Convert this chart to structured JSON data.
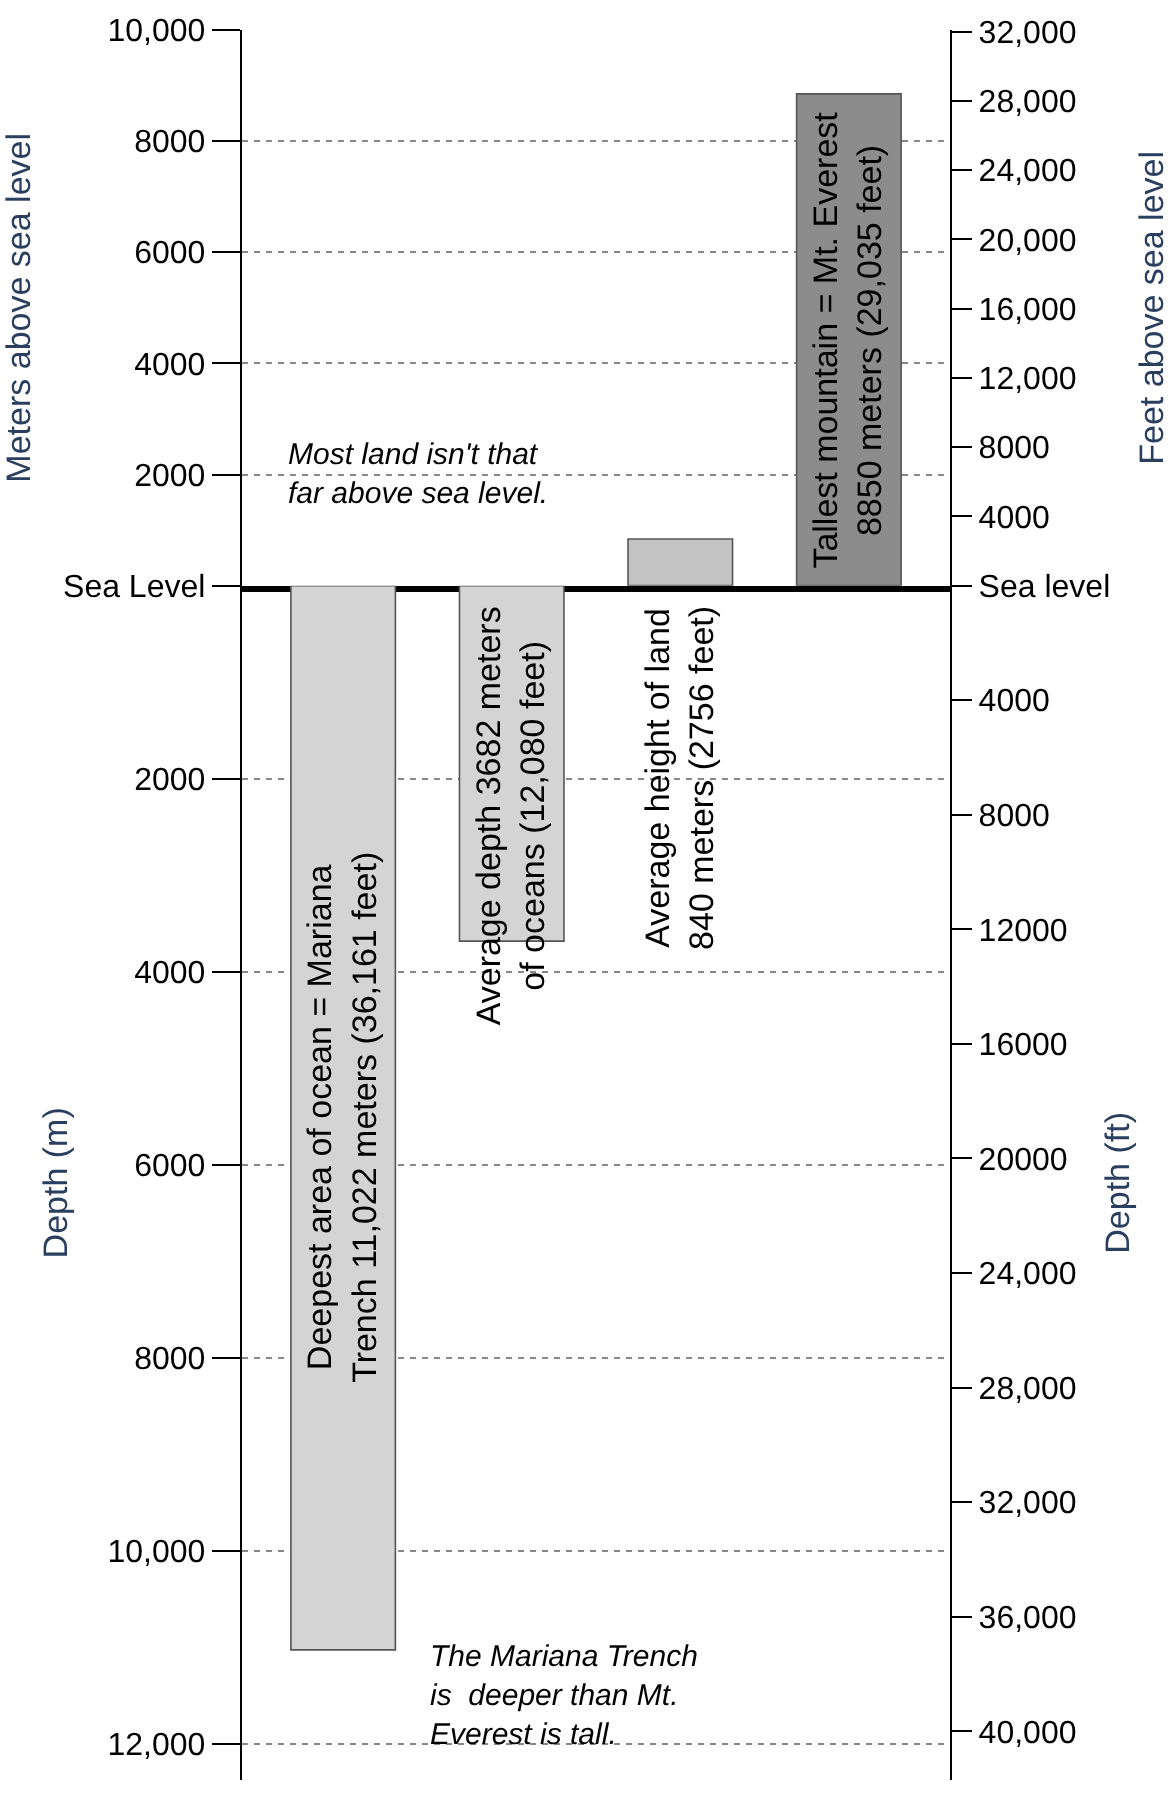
{
  "chart_data": [
    {
      "type": "bar",
      "categories": [
        null,
        null,
        null,
        null
      ],
      "values": [
        null,
        null,
        840,
        8850
      ],
      "colors": [
        "#d4d4d4",
        "#d4d4d4",
        "#c4c4c4",
        "#8c8c8c"
      ],
      "value_labels": [
        null,
        null,
        "Average height of land\n840 meters (2756 feet)",
        "Tallest mountain = Mt. Everest\n8850 meters (29,035 feet)"
      ],
      "ylabel": "Meters above sea level",
      "y2label": "Feet above sea level",
      "ylim": [
        0,
        10000
      ],
      "yticks": [
        {
          "value": 0,
          "label": "Sea Level"
        },
        2000,
        4000,
        6000,
        8000,
        {
          "value": 10000,
          "label": "10,000"
        }
      ],
      "y2lim": [
        0,
        32100
      ],
      "y2ticks": [
        {
          "value": 0,
          "label": "Sea level"
        },
        {
          "value": 4000,
          "label": "4000"
        },
        {
          "value": 8000,
          "label": "8000"
        },
        {
          "value": 12000,
          "label": "12,000"
        },
        {
          "value": 16000,
          "label": "16,000"
        },
        {
          "value": 20000,
          "label": "20,000"
        },
        {
          "value": 24000,
          "label": "24,000"
        },
        {
          "value": 28000,
          "label": "28,000"
        },
        {
          "value": 32000,
          "label": "32,000"
        }
      ],
      "grid": "y",
      "tick_labels": "y",
      "annotations": [
        "Most land isn't that\nfar above sea level."
      ]
    },
    {
      "type": "bar",
      "categories": [
        null,
        null,
        null,
        null
      ],
      "values": [
        11022,
        3682,
        null,
        null
      ],
      "colors": [
        "#d4d4d4",
        "#d4d4d4",
        "#c4c4c4",
        "#8c8c8c"
      ],
      "value_labels": [
        "Deepest area of ocean = Mariana\nTrench 11,022 meters (36,161 feet)",
        "Average depth 3682 meters\nof oceans (12,080 feet)",
        null,
        null
      ],
      "ylabel": "Depth (m)",
      "y2label": "Depth (ft)",
      "ylim": [
        12370,
        0
      ],
      "yticks": [
        2000,
        4000,
        6000,
        8000,
        {
          "value": 10000,
          "label": "10,000"
        },
        {
          "value": 12000,
          "label": "12,000"
        }
      ],
      "y2lim": [
        41700,
        0
      ],
      "y2ticks": [
        {
          "value": 4000,
          "label": "4000"
        },
        {
          "value": 8000,
          "label": "8000"
        },
        {
          "value": 12000,
          "label": "12000"
        },
        {
          "value": 16000,
          "label": "16000"
        },
        {
          "value": 20000,
          "label": "20000"
        },
        {
          "value": 24000,
          "label": "24,000"
        },
        {
          "value": 28000,
          "label": "28,000"
        },
        {
          "value": 32000,
          "label": "32,000"
        },
        {
          "value": 36000,
          "label": "36,000"
        },
        {
          "value": 40000,
          "label": "40,000"
        }
      ],
      "grid": "y",
      "tick_labels": "y",
      "annotations": [
        "The Mariana Trench\nis  deeper than Mt.\nEverest is tall."
      ]
    }
  ]
}
